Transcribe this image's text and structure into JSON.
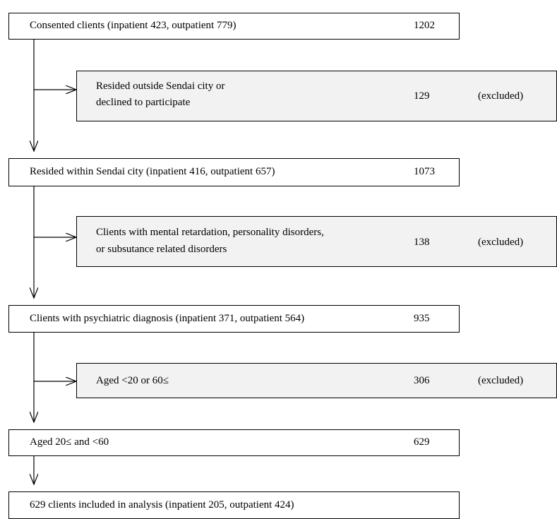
{
  "stages": [
    {
      "text": "Consented clients (inpatient 423, outpatient 779)",
      "count": "1202"
    },
    {
      "text": "Resided within Sendai city (inpatient 416, outpatient 657)",
      "count": "1073"
    },
    {
      "text": "Clients with psychiatric diagnosis (inpatient 371, outpatient 564)",
      "count": "935"
    },
    {
      "text": "Aged 20≤ and <60",
      "count": "629"
    },
    {
      "text": "629 clients included in analysis (inpatient 205, outpatient 424)"
    }
  ],
  "exclusions": [
    {
      "lines": [
        "Resided outside Sendai city or",
        "declined to participate"
      ],
      "count": "129",
      "tag": "(excluded)"
    },
    {
      "lines": [
        "Clients with mental retardation, personality disorders,",
        "or subsutance related disorders"
      ],
      "count": "138",
      "tag": "(excluded)"
    },
    {
      "lines": [
        "Aged <20 or 60≤"
      ],
      "count": "306",
      "tag": "(excluded)"
    }
  ]
}
